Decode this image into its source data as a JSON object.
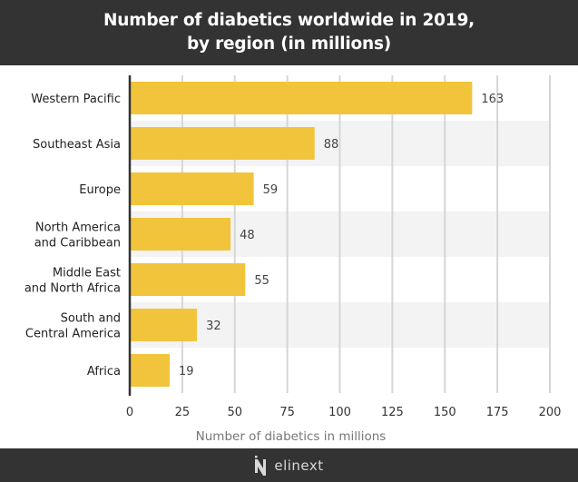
{
  "header": {
    "title_lines": [
      "Number of diabetics worldwide in 2019,",
      "by region (in millions)"
    ]
  },
  "footer": {
    "brand": "elinext",
    "logo_icon": "elinext-logo-icon"
  },
  "colors": {
    "bar": "#F2C43C",
    "header_bg": "#333333",
    "band": "#F3F3F3",
    "grid": "#D6D6D6",
    "axis": "#333333"
  },
  "chart_data": {
    "type": "bar",
    "orientation": "horizontal",
    "title": "Number of diabetics worldwide in 2019, by region (in millions)",
    "xlabel": "Number of diabetics in millions",
    "ylabel": "",
    "categories": [
      [
        "Western Pacific"
      ],
      [
        "Southeast Asia"
      ],
      [
        "Europe"
      ],
      [
        "North America",
        "and Caribbean"
      ],
      [
        "Middle East",
        "and North Africa"
      ],
      [
        "South and",
        "Central America"
      ],
      [
        "Africa"
      ]
    ],
    "values": [
      163,
      88,
      59,
      48,
      55,
      32,
      19
    ],
    "xlim": [
      0,
      200
    ],
    "xticks": [
      0,
      25,
      50,
      75,
      100,
      125,
      150,
      175,
      200
    ],
    "grid": true,
    "data_labels": true,
    "alternating_row_bands": true
  }
}
